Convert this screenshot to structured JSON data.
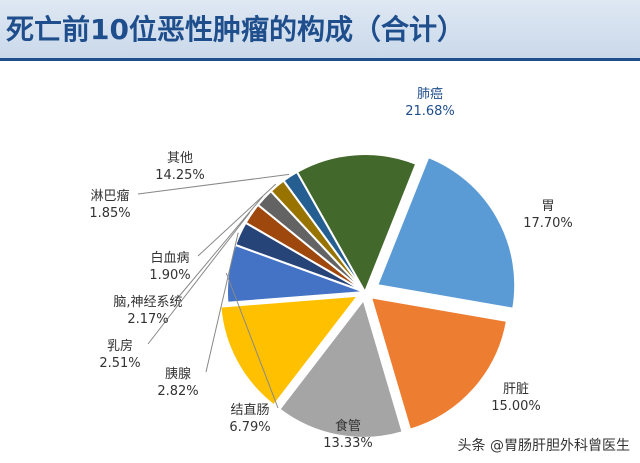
{
  "header": {
    "title": "死亡前10位恶性肿瘤的构成（合计）"
  },
  "watermark": "头条 @胃肠肝胆外科曾医生",
  "chart_data": {
    "type": "pie",
    "title": "死亡前10位恶性肿瘤的构成（合计）",
    "slices": [
      {
        "label": "肺癌",
        "value": 21.68,
        "display": "21.68%",
        "color": "#5b9bd5",
        "label_color": "#1f4e8c"
      },
      {
        "label": "胃",
        "value": 17.7,
        "display": "17.70%",
        "color": "#ed7d31",
        "label_color": "#333333"
      },
      {
        "label": "肝脏",
        "value": 15.0,
        "display": "15.00%",
        "color": "#a5a5a5",
        "label_color": "#333333"
      },
      {
        "label": "食管",
        "value": 13.33,
        "display": "13.33%",
        "color": "#ffc000",
        "label_color": "#333333"
      },
      {
        "label": "结直肠",
        "value": 6.79,
        "display": "6.79%",
        "color": "#4472c4",
        "label_color": "#333333"
      },
      {
        "label": "胰腺",
        "value": 2.82,
        "display": "2.82%",
        "color": "#264478",
        "label_color": "#333333"
      },
      {
        "label": "乳房",
        "value": 2.51,
        "display": "2.51%",
        "color": "#9e480e",
        "label_color": "#333333"
      },
      {
        "label": "脑,神经系统",
        "value": 2.17,
        "display": "2.17%",
        "color": "#636363",
        "label_color": "#333333"
      },
      {
        "label": "白血病",
        "value": 1.9,
        "display": "1.90%",
        "color": "#997300",
        "label_color": "#333333"
      },
      {
        "label": "淋巴瘤",
        "value": 1.85,
        "display": "1.85%",
        "color": "#255e91",
        "label_color": "#333333"
      },
      {
        "label": "其他",
        "value": 14.25,
        "display": "14.25%",
        "color": "#43682b",
        "label_color": "#333333"
      }
    ]
  }
}
